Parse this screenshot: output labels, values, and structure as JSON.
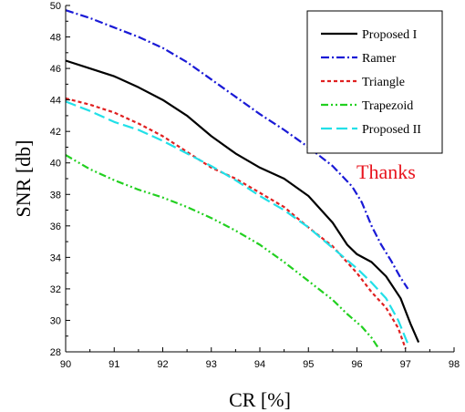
{
  "chart_data": {
    "type": "line",
    "xlabel": "CR [%]",
    "ylabel": "SNR [db]",
    "xlim": [
      90,
      98
    ],
    "ylim": [
      28,
      50
    ],
    "x_ticks": [
      "90",
      "91",
      "92",
      "93",
      "94",
      "95",
      "96",
      "97",
      "98"
    ],
    "y_ticks": [
      "28",
      "30",
      "32",
      "34",
      "36",
      "38",
      "40",
      "42",
      "44",
      "46",
      "48",
      "50"
    ],
    "grid": false,
    "legend_position": "top-right",
    "annotation": {
      "text": "Thanks",
      "color": "#e8141e"
    },
    "series": [
      {
        "name": "Proposed I",
        "color": "#000000",
        "dash": "solid",
        "points": [
          [
            90,
            46.5
          ],
          [
            90.5,
            46.0
          ],
          [
            91,
            45.5
          ],
          [
            91.5,
            44.8
          ],
          [
            92,
            44.0
          ],
          [
            92.5,
            43.0
          ],
          [
            93,
            41.7
          ],
          [
            93.5,
            40.6
          ],
          [
            94,
            39.7
          ],
          [
            94.5,
            39.0
          ],
          [
            95,
            37.9
          ],
          [
            95.5,
            36.2
          ],
          [
            95.8,
            34.8
          ],
          [
            96,
            34.2
          ],
          [
            96.3,
            33.7
          ],
          [
            96.6,
            32.8
          ],
          [
            96.9,
            31.4
          ],
          [
            97.1,
            29.8
          ],
          [
            97.27,
            28.6
          ]
        ]
      },
      {
        "name": "Ramer",
        "color": "#1a1ad6",
        "dash": "dashdot",
        "points": [
          [
            90,
            49.7
          ],
          [
            90.5,
            49.2
          ],
          [
            91,
            48.6
          ],
          [
            91.5,
            48.0
          ],
          [
            92,
            47.3
          ],
          [
            92.5,
            46.4
          ],
          [
            93,
            45.3
          ],
          [
            93.5,
            44.2
          ],
          [
            94,
            43.1
          ],
          [
            94.5,
            42.1
          ],
          [
            95,
            41.0
          ],
          [
            95.5,
            39.8
          ],
          [
            95.9,
            38.5
          ],
          [
            96.1,
            37.5
          ],
          [
            96.3,
            36.0
          ],
          [
            96.5,
            34.8
          ],
          [
            96.7,
            33.8
          ],
          [
            96.9,
            32.7
          ],
          [
            97.05,
            32.0
          ]
        ]
      },
      {
        "name": "Triangle",
        "color": "#e02020",
        "dash": "dotted",
        "points": [
          [
            90,
            44.1
          ],
          [
            90.5,
            43.7
          ],
          [
            91,
            43.2
          ],
          [
            91.5,
            42.5
          ],
          [
            92,
            41.7
          ],
          [
            92.5,
            40.7
          ],
          [
            93,
            39.7
          ],
          [
            93.5,
            39.0
          ],
          [
            94,
            38.1
          ],
          [
            94.5,
            37.2
          ],
          [
            95,
            35.9
          ],
          [
            95.5,
            34.7
          ],
          [
            96,
            33.0
          ],
          [
            96.3,
            31.8
          ],
          [
            96.6,
            30.8
          ],
          [
            96.85,
            29.5
          ],
          [
            97.0,
            28.2
          ]
        ]
      },
      {
        "name": "Trapezoid",
        "color": "#22d020",
        "dash": "dashdotdot",
        "points": [
          [
            90,
            40.5
          ],
          [
            90.5,
            39.6
          ],
          [
            91,
            38.9
          ],
          [
            91.5,
            38.3
          ],
          [
            92,
            37.8
          ],
          [
            92.5,
            37.2
          ],
          [
            93,
            36.5
          ],
          [
            93.5,
            35.7
          ],
          [
            94,
            34.8
          ],
          [
            94.5,
            33.7
          ],
          [
            95,
            32.5
          ],
          [
            95.5,
            31.3
          ],
          [
            95.8,
            30.4
          ],
          [
            96.1,
            29.6
          ],
          [
            96.3,
            28.9
          ],
          [
            96.45,
            28.2
          ]
        ]
      },
      {
        "name": "Proposed II",
        "color": "#22e0e8",
        "dash": "dashed",
        "points": [
          [
            90,
            43.9
          ],
          [
            90.5,
            43.3
          ],
          [
            91,
            42.6
          ],
          [
            91.5,
            42.1
          ],
          [
            92,
            41.4
          ],
          [
            92.5,
            40.6
          ],
          [
            93,
            39.8
          ],
          [
            93.5,
            38.9
          ],
          [
            94,
            37.9
          ],
          [
            94.5,
            37.0
          ],
          [
            95,
            35.9
          ],
          [
            95.5,
            34.6
          ],
          [
            96,
            33.3
          ],
          [
            96.3,
            32.4
          ],
          [
            96.6,
            31.4
          ],
          [
            96.85,
            30.0
          ],
          [
            97.05,
            28.5
          ]
        ]
      }
    ]
  }
}
